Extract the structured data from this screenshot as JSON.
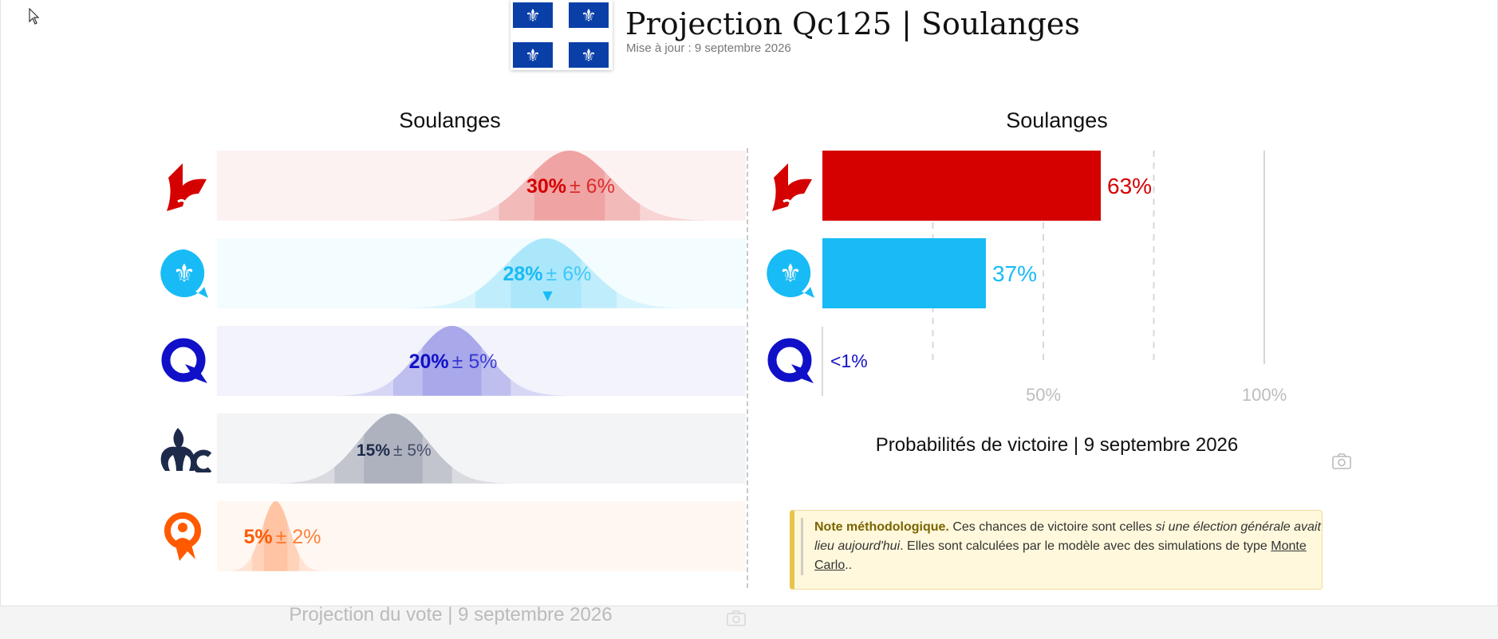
{
  "page": {
    "title": "Projection Qc125 | Soulanges",
    "updated": "Mise à jour : 9 septembre 2026",
    "flag_icon": "quebec-flag-icon"
  },
  "vote_panel": {
    "title": "Soulanges",
    "caption": "Projection du vote | 9 septembre 2026",
    "camera_icon": "camera-icon"
  },
  "prob_panel": {
    "title": "Soulanges",
    "caption": "Probabilités de victoire | 9 septembre 2026",
    "camera_icon": "camera-icon"
  },
  "note": {
    "bold": "Note méthodologique.",
    "text1": " Ces chances de victoire sont celles ",
    "italic": "si une élection générale avait lieu aujourd'hui",
    "text2": ". Elles sont calculées par le modèle avec des simulations de type ",
    "link": "Monte Carlo",
    "text3": ".."
  },
  "parties": [
    {
      "icon": "plq-logo-icon",
      "color": "#d50000"
    },
    {
      "icon": "caq-logo-icon",
      "color": "#18bbf5"
    },
    {
      "icon": "pq-logo-icon",
      "color": "#1010c8"
    },
    {
      "icon": "pcq-logo-icon",
      "color": "#1d2a4a"
    },
    {
      "icon": "qs-logo-icon",
      "color": "#ff5a00"
    }
  ],
  "chart_data": [
    {
      "type": "bar",
      "title": "Soulanges",
      "caption": "Projection du vote | 9 septembre 2026",
      "xlim": [
        0,
        45
      ],
      "series": [
        {
          "value": 30,
          "margin": 6,
          "value_label": "30%",
          "margin_label": "± 6%",
          "color": "#d50000",
          "trend": ""
        },
        {
          "value": 28,
          "margin": 6,
          "value_label": "28%",
          "margin_label": "± 6%",
          "color": "#18bbf5",
          "trend": "▼"
        },
        {
          "value": 20,
          "margin": 5,
          "value_label": "20%",
          "margin_label": "± 5%",
          "color": "#1010c8",
          "trend": ""
        },
        {
          "value": 15,
          "margin": 5,
          "value_label": "15%",
          "margin_label": "± 5%",
          "color": "#1d2a4a",
          "trend": ""
        },
        {
          "value": 5,
          "margin": 2,
          "value_label": "5%",
          "margin_label": "± 2%",
          "color": "#ff5a00",
          "trend": ""
        }
      ]
    },
    {
      "type": "bar",
      "title": "Soulanges",
      "caption": "Probabilités de victoire | 9 septembre 2026",
      "xlim": [
        0,
        100
      ],
      "ticks": [
        {
          "value": 50,
          "label": "50%"
        },
        {
          "value": 100,
          "label": "100%"
        }
      ],
      "gridlines": [
        25,
        50,
        75,
        100
      ],
      "series": [
        {
          "value": 63,
          "label": "63%",
          "color": "#d50000"
        },
        {
          "value": 37,
          "label": "37%",
          "color": "#18bbf5"
        },
        {
          "value": 0.5,
          "label": "<1%",
          "color": "#1010c8"
        }
      ]
    }
  ]
}
